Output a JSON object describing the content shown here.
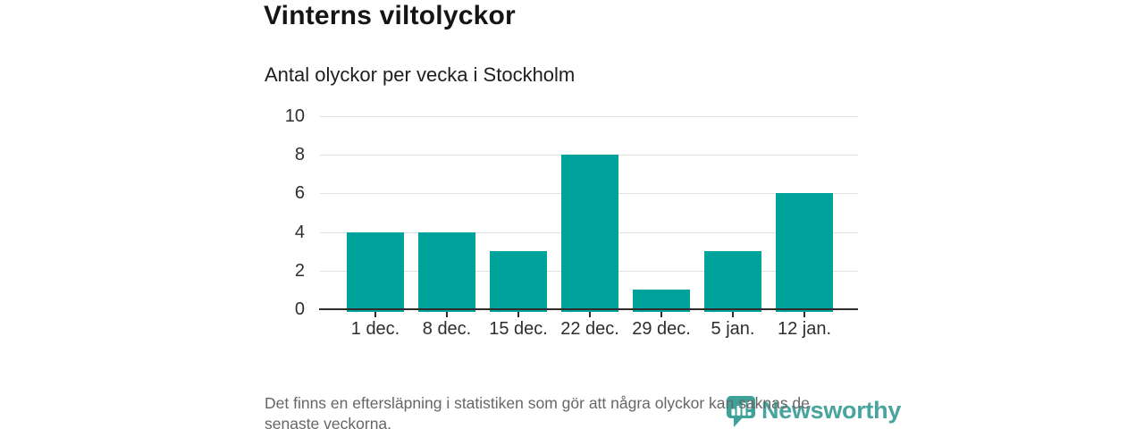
{
  "header": {
    "title": "Vinterns viltolyckor",
    "subtitle": "Antal olyckor per vecka i Stockholm"
  },
  "chart_data": {
    "type": "bar",
    "title": "Vinterns viltolyckor",
    "subtitle": "Antal olyckor per vecka i Stockholm",
    "categories": [
      "1 dec.",
      "8 dec.",
      "15 dec.",
      "22 dec.",
      "29 dec.",
      "5 jan.",
      "12 jan."
    ],
    "values": [
      4,
      4,
      3,
      8,
      1,
      3,
      6
    ],
    "xlabel": "",
    "ylabel": "",
    "ylim": [
      0,
      10
    ],
    "yticks": [
      0,
      2,
      4,
      6,
      8,
      10
    ],
    "grid": true,
    "legend": "none",
    "bar_color": "#00a39b"
  },
  "footer": {
    "note": "Det finns en eftersläpning i statistiken som gör att några olyckor kan saknas de senaste veckorna.",
    "note_lines": [
      "Det finns en eftersläpning i statistiken som gör att några olyckor kan saknas de",
      "senaste veckorna."
    ],
    "logo_text": "Newsworthy"
  },
  "colors": {
    "accent": "#00a39b",
    "logo": "#43a39c",
    "axis_text": "#2e2e2e",
    "muted_text": "#666666",
    "gridline": "#e2e2e2",
    "baseline": "#2d2d2d"
  }
}
